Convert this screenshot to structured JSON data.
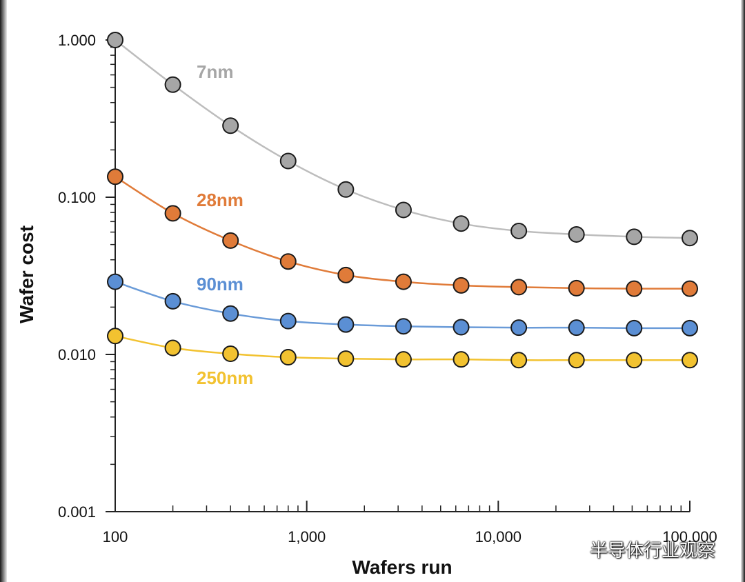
{
  "chart_data": {
    "type": "line",
    "title": "",
    "xlabel": "Wafers run",
    "ylabel": "Wafer cost",
    "x_scale": "log",
    "y_scale": "log",
    "xlim": [
      100,
      100000
    ],
    "ylim": [
      0.001,
      1.0
    ],
    "x_ticks": [
      100,
      1000,
      10000,
      100000
    ],
    "x_tick_labels": [
      "100",
      "1,000",
      "10,000",
      "100,000"
    ],
    "y_ticks": [
      0.001,
      0.01,
      0.1,
      1.0
    ],
    "y_tick_labels": [
      "0.001",
      "0.010",
      "0.100",
      "1.000"
    ],
    "grid": false,
    "x": [
      100,
      200,
      400,
      800,
      1600,
      3200,
      6400,
      12800,
      25600,
      51200,
      100000
    ],
    "series": [
      {
        "name": "7nm",
        "color": "#a6a6a6",
        "line_color": "#bdbdbd",
        "values": [
          1.0,
          0.52,
          0.285,
          0.17,
          0.112,
          0.083,
          0.068,
          0.061,
          0.058,
          0.056,
          0.055
        ]
      },
      {
        "name": "28nm",
        "color": "#e07b39",
        "line_color": "#e07b39",
        "values": [
          0.135,
          0.079,
          0.053,
          0.039,
          0.032,
          0.029,
          0.0275,
          0.0268,
          0.0264,
          0.0262,
          0.0262
        ]
      },
      {
        "name": "90nm",
        "color": "#5b8fd4",
        "line_color": "#6a9bd8",
        "values": [
          0.029,
          0.0218,
          0.0182,
          0.0163,
          0.0155,
          0.0151,
          0.0149,
          0.0148,
          0.0148,
          0.0147,
          0.0147
        ]
      },
      {
        "name": "250nm",
        "color": "#f2c230",
        "line_color": "#f2c230",
        "values": [
          0.0131,
          0.011,
          0.0101,
          0.0096,
          0.0094,
          0.0093,
          0.0093,
          0.0092,
          0.0092,
          0.0092,
          0.0092
        ]
      }
    ]
  },
  "watermark": {
    "icon": "wechat-icon",
    "text": "半导体行业观察"
  }
}
